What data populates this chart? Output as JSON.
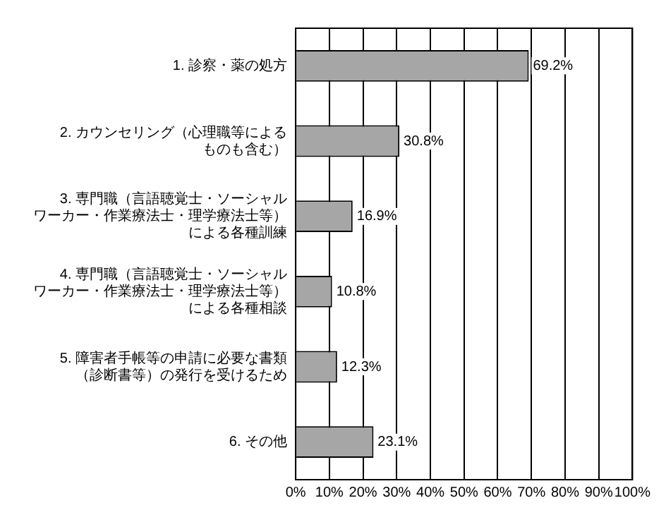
{
  "chart_data": {
    "type": "bar",
    "orientation": "horizontal",
    "categories": [
      "1. 診察・薬の処方",
      "2. カウンセリング（心理職等によるものも含む）",
      "3. 専門職（言語聴覚士・ソーシャルワーカー・作業療法士・理学療法士等）による各種訓練",
      "4. 専門職（言語聴覚士・ソーシャルワーカー・作業療法士・理学療法士等）による各種相談",
      "5. 障害者手帳等の申請に必要な書類（診断書等）の発行を受けるため",
      "6. その他"
    ],
    "values": [
      69.2,
      30.8,
      16.9,
      10.8,
      12.3,
      23.1
    ],
    "value_labels": [
      "69.2%",
      "30.8%",
      "16.9%",
      "10.8%",
      "12.3%",
      "23.1%"
    ],
    "color": "#a6a6a6",
    "xlim": [
      0,
      100
    ],
    "xticks": [
      {
        "value": 0,
        "label": "0%"
      },
      {
        "value": 10,
        "label": "10%"
      },
      {
        "value": 20,
        "label": "20%"
      },
      {
        "value": 30,
        "label": "30%"
      },
      {
        "value": 40,
        "label": "40%"
      },
      {
        "value": 50,
        "label": "50%"
      },
      {
        "value": 60,
        "label": "60%"
      },
      {
        "value": 70,
        "label": "70%"
      },
      {
        "value": 80,
        "label": "80%"
      },
      {
        "value": 90,
        "label": "90%"
      },
      {
        "value": 100,
        "label": "100%"
      }
    ],
    "grid": "x",
    "legend": false
  }
}
